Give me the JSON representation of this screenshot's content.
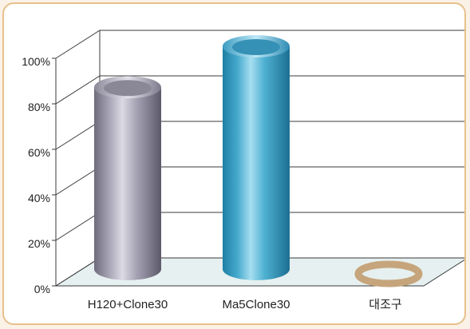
{
  "chart_data": {
    "type": "bar",
    "categories": [
      "H120+Clone30",
      "Ma5Clone30",
      "대조구"
    ],
    "values": [
      82,
      100,
      0
    ],
    "ylim": [
      0,
      100
    ],
    "yticks": [
      "0%",
      "20%",
      "40%",
      "60%",
      "80%",
      "100%"
    ],
    "grid": true,
    "legend": "none"
  },
  "colors": {
    "bar_gray": "#a8a5b6",
    "bar_blue": "#4fb1d2",
    "control_ring": "#c6a57c",
    "floor": "#e6f0f0",
    "grid": "#3a3a3a",
    "border": "#e7c08c"
  }
}
